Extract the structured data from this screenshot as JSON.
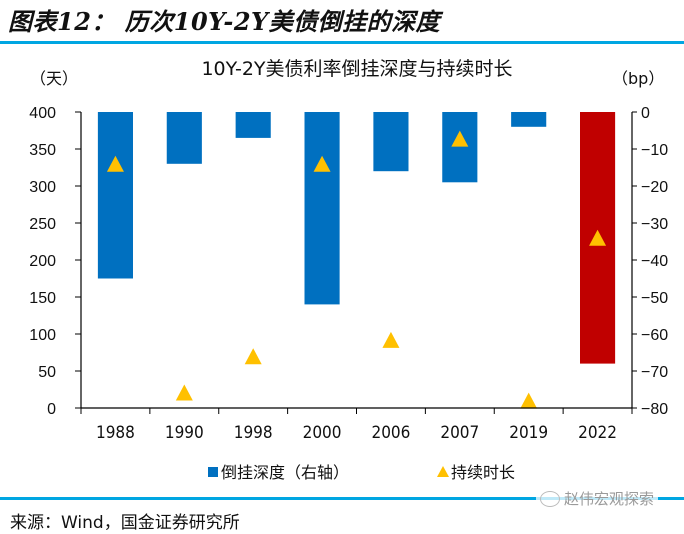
{
  "figure": {
    "title": "图表12： 历次10Y-2Y美债倒挂的深度",
    "source": "来源：Wind，国金证券研究所",
    "watermark": "赵伟宏观探索"
  },
  "colors": {
    "rule": "#00A6E2",
    "bar": "#0070C0",
    "bar_highlight": "#C00000",
    "marker": "#FFC000"
  },
  "chart_data": {
    "type": "bar",
    "title": "10Y-2Y美债利率倒挂深度与持续时长",
    "left_unit": "（天）",
    "right_unit": "（bp）",
    "categories": [
      "1988",
      "1990",
      "1998",
      "2000",
      "2006",
      "2007",
      "2019",
      "2022"
    ],
    "left_axis": {
      "ylim": [
        0,
        400
      ],
      "ticks": [
        0,
        50,
        100,
        150,
        200,
        250,
        300,
        350,
        400
      ]
    },
    "right_axis": {
      "ylim": [
        -80,
        0
      ],
      "ticks": [
        0,
        -10,
        -20,
        -30,
        -40,
        -50,
        -60,
        -70,
        -80
      ]
    },
    "series": [
      {
        "name": "倒挂深度（右轴）",
        "type": "bar",
        "axis": "right",
        "values": [
          -45,
          -14,
          -7,
          -52,
          -16,
          -19,
          -4,
          -68
        ],
        "highlight_index": 7
      },
      {
        "name": "持续时长",
        "type": "scatter-triangle",
        "axis": "left",
        "values": [
          330,
          21,
          70,
          330,
          92,
          364,
          10,
          230
        ]
      }
    ],
    "legend": [
      "倒挂深度（右轴）",
      "持续时长"
    ],
    "legend_position": "bottom",
    "grid": false
  }
}
